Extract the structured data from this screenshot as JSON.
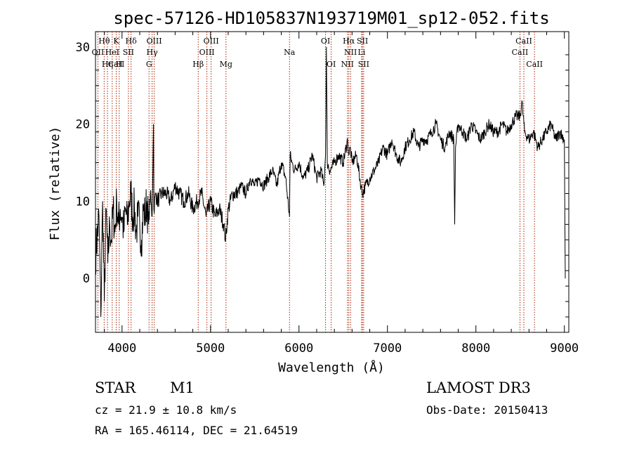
{
  "chart_data": {
    "type": "line",
    "title": "spec-57126-HD105837N193719M01_sp12-052.fits",
    "xlabel": "Wavelength (Å)",
    "ylabel": "Flux (relative)",
    "xlim": [
      3700,
      9050
    ],
    "ylim": [
      -7,
      32
    ],
    "x_ticks": [
      4000,
      5000,
      6000,
      7000,
      8000,
      9000
    ],
    "y_ticks": [
      0,
      10,
      20,
      30
    ],
    "line_color": "#000000",
    "marker_color": "#aa2200",
    "spectrum": {
      "x": [
        3700,
        3740,
        3760,
        3780,
        3800,
        3820,
        3840,
        3860,
        3880,
        3900,
        3920,
        3940,
        3960,
        3980,
        4000,
        4020,
        4040,
        4060,
        4080,
        4100,
        4120,
        4140,
        4160,
        4180,
        4200,
        4220,
        4240,
        4260,
        4280,
        4300,
        4320,
        4340,
        4356,
        4360,
        4380,
        4400,
        4450,
        4500,
        4550,
        4600,
        4650,
        4700,
        4750,
        4800,
        4850,
        4900,
        4950,
        5000,
        5050,
        5100,
        5150,
        5170,
        5200,
        5250,
        5300,
        5350,
        5400,
        5450,
        5500,
        5550,
        5600,
        5650,
        5700,
        5750,
        5800,
        5850,
        5893,
        5900,
        5920,
        5950,
        6000,
        6050,
        6100,
        6150,
        6200,
        6250,
        6280,
        6300,
        6310,
        6320,
        6350,
        6400,
        6450,
        6500,
        6550,
        6563,
        6580,
        6600,
        6650,
        6700,
        6720,
        6750,
        6800,
        6850,
        6900,
        6950,
        7000,
        7050,
        7100,
        7150,
        7200,
        7250,
        7300,
        7350,
        7400,
        7450,
        7500,
        7550,
        7600,
        7650,
        7700,
        7750,
        7760,
        7770,
        7800,
        7850,
        7900,
        7950,
        8000,
        8050,
        8100,
        8150,
        8200,
        8250,
        8300,
        8350,
        8400,
        8450,
        8500,
        8520,
        8550,
        8600,
        8650,
        8700,
        8750,
        8800,
        8850,
        8900,
        8950,
        9000,
        9010
      ],
      "y": [
        3,
        8,
        -5,
        10,
        -3,
        9,
        2,
        7,
        5,
        9,
        6,
        10,
        7,
        9,
        8,
        6,
        9,
        7,
        10,
        11,
        8,
        9,
        6,
        8,
        7,
        5,
        9,
        8,
        10,
        7,
        11,
        8,
        20,
        9,
        11,
        10,
        11,
        11,
        10,
        12,
        11,
        10,
        11,
        9,
        10,
        11,
        8,
        10,
        8,
        9,
        7,
        5,
        9,
        11,
        11,
        12,
        11,
        13,
        12,
        13,
        12,
        13,
        14,
        12,
        15,
        13,
        8,
        16,
        15,
        14,
        15,
        13,
        14,
        16,
        13,
        14,
        12,
        16,
        30,
        15,
        14,
        15,
        16,
        15,
        18,
        16,
        17,
        15,
        16,
        12,
        11,
        12,
        13,
        14,
        15,
        17,
        16,
        18,
        16,
        15,
        17,
        18,
        19,
        17,
        18,
        18,
        19,
        20,
        18,
        17,
        19,
        18,
        7,
        17,
        20,
        19,
        18,
        20,
        19,
        18,
        19,
        20,
        19,
        19,
        20,
        19,
        20,
        21,
        21,
        23,
        19,
        18,
        19,
        17,
        18,
        19,
        20,
        18,
        19,
        18,
        0
      ],
      "jagged": true
    },
    "line_markers": [
      {
        "label": "Hθ",
        "x": 3798,
        "row": 1
      },
      {
        "label": "K",
        "x": 3934,
        "row": 1
      },
      {
        "label": "Hδ",
        "x": 4102,
        "row": 1
      },
      {
        "label": "OIII",
        "x": 4363,
        "row": 1
      },
      {
        "label": "OIII",
        "x": 5007,
        "row": 1
      },
      {
        "label": "OI",
        "x": 6300,
        "row": 1
      },
      {
        "label": "Hα",
        "x": 6563,
        "row": 1
      },
      {
        "label": "SII",
        "x": 6717,
        "row": 1
      },
      {
        "label": "CaII",
        "x": 8542,
        "row": 1
      },
      {
        "label": "OII",
        "x": 3727,
        "row": 2
      },
      {
        "label": "HeI",
        "x": 3889,
        "row": 2
      },
      {
        "label": "SII",
        "x": 4072,
        "row": 2
      },
      {
        "label": "Hγ",
        "x": 4340,
        "row": 2
      },
      {
        "label": "OIII",
        "x": 4959,
        "row": 2
      },
      {
        "label": "Na",
        "x": 5893,
        "row": 2
      },
      {
        "label": "NII",
        "x": 6583,
        "row": 2
      },
      {
        "label": "Li",
        "x": 6708,
        "row": 2
      },
      {
        "label": "CaII",
        "x": 8498,
        "row": 2
      },
      {
        "label": "CaII",
        "x": 3934,
        "row": 3
      },
      {
        "label": "Hη",
        "x": 3835,
        "row": 3
      },
      {
        "label": "H",
        "x": 3968,
        "row": 3
      },
      {
        "label": "G",
        "x": 4305,
        "row": 3
      },
      {
        "label": "Hβ",
        "x": 4861,
        "row": 3
      },
      {
        "label": "Mg",
        "x": 5175,
        "row": 3
      },
      {
        "label": "OI",
        "x": 6364,
        "row": 3
      },
      {
        "label": "NII",
        "x": 6548,
        "row": 3
      },
      {
        "label": "SII",
        "x": 6731,
        "row": 3
      },
      {
        "label": "CaII",
        "x": 8662,
        "row": 3
      }
    ]
  },
  "info": {
    "object_class": "STAR",
    "subclass": "M1",
    "survey": "LAMOST DR3",
    "cz": "cz = 21.9 ± 10.8 km/s",
    "obs_date": "Obs-Date: 20150413",
    "coords": "RA = 165.46114, DEC =  21.64519"
  }
}
